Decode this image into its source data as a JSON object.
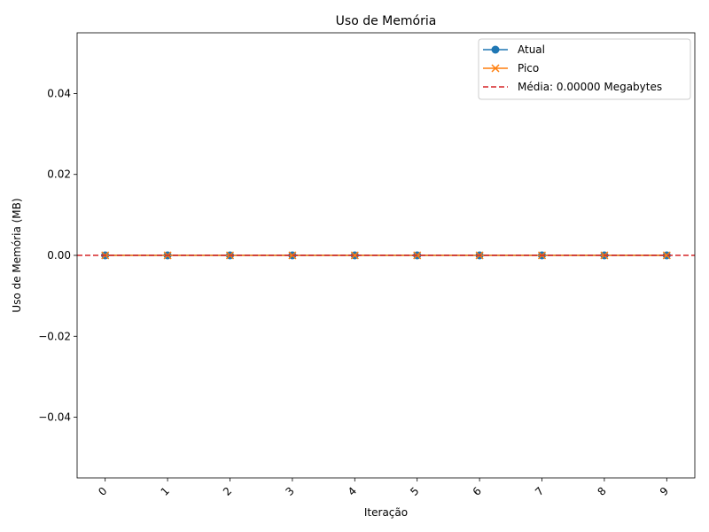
{
  "chart_data": {
    "type": "line",
    "title": "Uso de Memória",
    "xlabel": "Iteração",
    "ylabel": "Uso de Memória (MB)",
    "x": [
      0,
      1,
      2,
      3,
      4,
      5,
      6,
      7,
      8,
      9
    ],
    "x_tick_labels": [
      "0",
      "1",
      "2",
      "3",
      "4",
      "5",
      "6",
      "7",
      "8",
      "9"
    ],
    "xlim": [
      -0.45,
      9.45
    ],
    "ylim": [
      -0.055,
      0.055
    ],
    "y_ticks": [
      -0.04,
      -0.02,
      0.0,
      0.02,
      0.04
    ],
    "y_tick_labels": [
      "−0.04",
      "−0.02",
      "0.00",
      "0.02",
      "0.04"
    ],
    "series": [
      {
        "name": "Atual",
        "values": [
          0,
          0,
          0,
          0,
          0,
          0,
          0,
          0,
          0,
          0
        ],
        "color": "#1f77b4",
        "marker": "circle"
      },
      {
        "name": "Pico",
        "values": [
          0,
          0,
          0,
          0,
          0,
          0,
          0,
          0,
          0,
          0
        ],
        "color": "#ff7f0e",
        "marker": "x"
      }
    ],
    "mean_line": {
      "name": "Média: 0.00000 Megabytes",
      "value": 0.0,
      "color": "#d62728",
      "style": "dashed"
    },
    "grid": false,
    "legend_position": "top-right"
  }
}
